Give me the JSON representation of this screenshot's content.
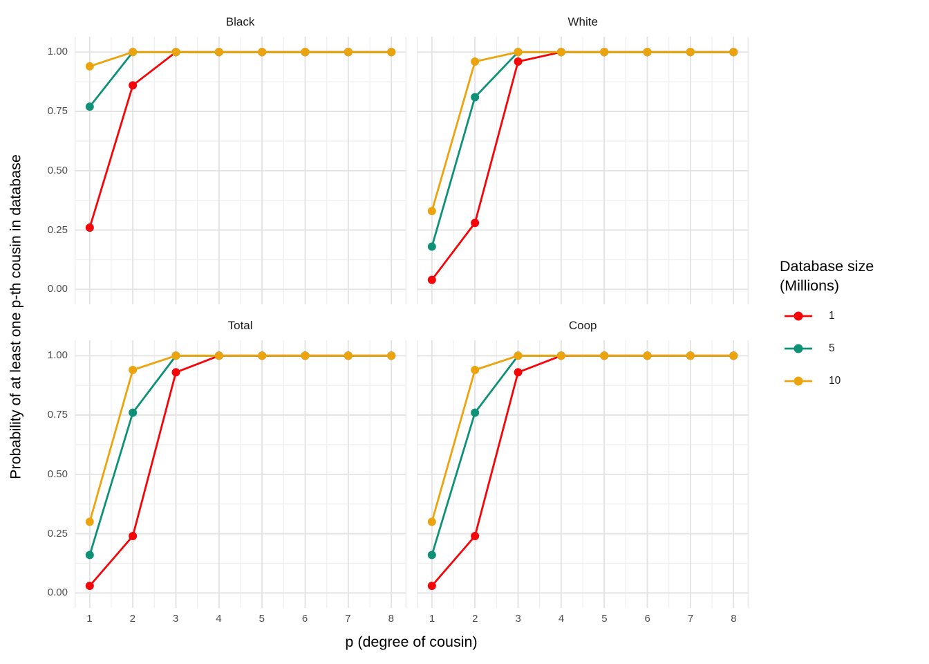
{
  "chart_data": {
    "type": "line",
    "x": [
      1,
      2,
      3,
      4,
      5,
      6,
      7,
      8
    ],
    "x_ticks": [
      "1",
      "2",
      "3",
      "4",
      "5",
      "6",
      "7",
      "8"
    ],
    "y_ticks": [
      "0.00",
      "0.25",
      "0.50",
      "0.75",
      "1.00"
    ],
    "ylim": [
      0,
      1
    ],
    "grid": true,
    "legend_position": "right",
    "xlabel": "p (degree of cousin)",
    "ylabel": "Probability of at least one p-th cousin in database",
    "legend": {
      "title_line1": "Database size",
      "title_line2": "(Millions)",
      "entries": [
        {
          "label": "1",
          "color": "#F50508"
        },
        {
          "label": "5",
          "color": "#0F9178"
        },
        {
          "label": "10",
          "color": "#EBA40E"
        }
      ]
    },
    "facets": [
      {
        "title": "Black",
        "series": [
          {
            "name": "1",
            "values": [
              0.26,
              0.86,
              1,
              1,
              1,
              1,
              1,
              1
            ]
          },
          {
            "name": "5",
            "values": [
              0.77,
              1,
              1,
              1,
              1,
              1,
              1,
              1
            ]
          },
          {
            "name": "10",
            "values": [
              0.94,
              1,
              1,
              1,
              1,
              1,
              1,
              1
            ]
          }
        ]
      },
      {
        "title": "White",
        "series": [
          {
            "name": "1",
            "values": [
              0.04,
              0.28,
              0.96,
              1,
              1,
              1,
              1,
              1
            ]
          },
          {
            "name": "5",
            "values": [
              0.18,
              0.81,
              1,
              1,
              1,
              1,
              1,
              1
            ]
          },
          {
            "name": "10",
            "values": [
              0.33,
              0.96,
              1,
              1,
              1,
              1,
              1,
              1
            ]
          }
        ]
      },
      {
        "title": "Total",
        "series": [
          {
            "name": "1",
            "values": [
              0.03,
              0.24,
              0.93,
              1,
              1,
              1,
              1,
              1
            ]
          },
          {
            "name": "5",
            "values": [
              0.16,
              0.76,
              1,
              1,
              1,
              1,
              1,
              1
            ]
          },
          {
            "name": "10",
            "values": [
              0.3,
              0.94,
              1,
              1,
              1,
              1,
              1,
              1
            ]
          }
        ]
      },
      {
        "title": "Coop",
        "series": [
          {
            "name": "1",
            "values": [
              0.03,
              0.24,
              0.93,
              1,
              1,
              1,
              1,
              1
            ]
          },
          {
            "name": "5",
            "values": [
              0.16,
              0.76,
              1,
              1,
              1,
              1,
              1,
              1
            ]
          },
          {
            "name": "10",
            "values": [
              0.3,
              0.94,
              1,
              1,
              1,
              1,
              1,
              1
            ]
          }
        ]
      }
    ]
  }
}
